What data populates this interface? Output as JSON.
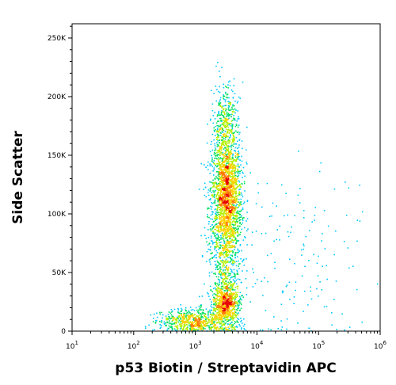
{
  "chart_data": {
    "type": "scatter",
    "subtype": "flow-cytometry-density-dot-plot",
    "xlabel": "p53 Biotin / Streptavidin APC",
    "ylabel": "Side Scatter",
    "x_scale": "log",
    "xlim": [
      10,
      1000000
    ],
    "ylim": [
      0,
      262144
    ],
    "x_ticks": [
      {
        "base": "10",
        "exp": "1",
        "value": 10
      },
      {
        "base": "10",
        "exp": "2",
        "value": 100
      },
      {
        "base": "10",
        "exp": "3",
        "value": 1000
      },
      {
        "base": "10",
        "exp": "4",
        "value": 10000
      },
      {
        "base": "10",
        "exp": "5",
        "value": 100000
      },
      {
        "base": "10",
        "exp": "6",
        "value": 1000000
      }
    ],
    "y_ticks": [
      {
        "label": "0",
        "value": 0
      },
      {
        "label": "50K",
        "value": 50000
      },
      {
        "label": "100K",
        "value": 100000
      },
      {
        "label": "150K",
        "value": 150000
      },
      {
        "label": "200K",
        "value": 200000
      },
      {
        "label": "250K",
        "value": 250000
      }
    ],
    "color_scale": [
      "#0000ff",
      "#00c8ff",
      "#00e060",
      "#b4f000",
      "#ffd200",
      "#ff7800",
      "#e60000"
    ],
    "populations": [
      {
        "name_hidden": true,
        "x_center": 3200,
        "y_center": 118000,
        "x_spread_decades": 0.12,
        "y_spread": 22000,
        "count": 1300,
        "peak_density": "high"
      },
      {
        "name_hidden": true,
        "x_center": 3000,
        "y_center": 82000,
        "x_spread_decades": 0.14,
        "y_spread": 45000,
        "count": 1200,
        "peak_density": "medium"
      },
      {
        "name_hidden": true,
        "x_center": 3100,
        "y_center": 25000,
        "x_spread_decades": 0.11,
        "y_spread": 9000,
        "count": 650,
        "peak_density": "high"
      },
      {
        "name_hidden": true,
        "x_center": 900,
        "y_center": 9000,
        "x_spread_decades": 0.28,
        "y_spread": 5000,
        "count": 650,
        "peak_density": "medium"
      },
      {
        "name_hidden": true,
        "x_center": 3000,
        "y_center": 175000,
        "x_spread_decades": 0.1,
        "y_spread": 18000,
        "count": 380,
        "peak_density": "low"
      },
      {
        "name_hidden": true,
        "x_center": 40000,
        "y_center": 60000,
        "x_spread_decades": 0.6,
        "y_spread": 45000,
        "count": 160,
        "peak_density": "sparse"
      }
    ]
  }
}
